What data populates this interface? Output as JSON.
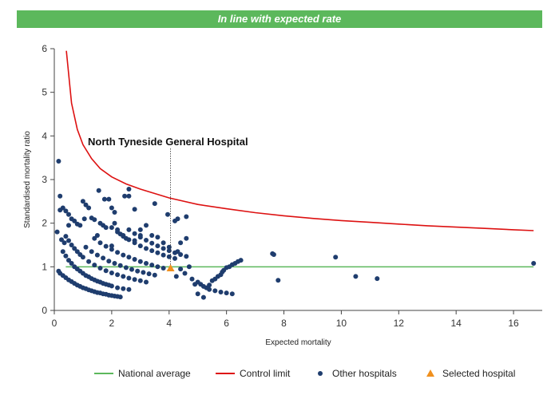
{
  "banner": {
    "text": "In line with expected rate"
  },
  "chart_data": {
    "type": "scatter",
    "xlabel": "Expected mortality",
    "ylabel": "Standardised mortality ratio",
    "xlim": [
      0,
      17
    ],
    "ylim": [
      0,
      6
    ],
    "xticks": [
      0,
      2,
      4,
      6,
      8,
      10,
      12,
      14,
      16
    ],
    "yticks": [
      0,
      1,
      2,
      3,
      4,
      5,
      6
    ],
    "annotation": {
      "text": "North Tyneside General Hospital",
      "x": 4.05
    },
    "legend": {
      "position": "bottom",
      "entries": [
        {
          "label": "National average",
          "kind": "line",
          "color": "#5cb85c"
        },
        {
          "label": "Control limit",
          "kind": "line",
          "color": "#dd1111"
        },
        {
          "label": "Other hospitals",
          "kind": "circle",
          "color": "#1f3d6e"
        },
        {
          "label": "Selected hospital",
          "kind": "triangle",
          "color": "#f0901e"
        }
      ]
    },
    "series": [
      {
        "name": "National average",
        "type": "line",
        "color": "#5cb85c",
        "x": [
          0.4,
          16.7
        ],
        "y": [
          1,
          1
        ]
      },
      {
        "name": "Control limit",
        "type": "line",
        "color": "#dd1111",
        "x": [
          0.42,
          0.6,
          0.8,
          1,
          1.3,
          1.6,
          2,
          2.5,
          3,
          3.5,
          4,
          5,
          6,
          7,
          8,
          9,
          10,
          11,
          12,
          13,
          14,
          15,
          16,
          16.7
        ],
        "y": [
          5.95,
          4.75,
          4.15,
          3.8,
          3.48,
          3.25,
          3.06,
          2.9,
          2.78,
          2.68,
          2.58,
          2.43,
          2.33,
          2.24,
          2.17,
          2.11,
          2.06,
          2.02,
          1.98,
          1.94,
          1.91,
          1.88,
          1.85,
          1.83
        ]
      },
      {
        "name": "Selected hospital",
        "type": "scatter",
        "color": "#f0901e",
        "x": [
          4.05
        ],
        "y": [
          0.97
        ]
      },
      {
        "name": "Other hospitals",
        "type": "scatter",
        "color": "#1f3d6e",
        "x": [
          0.15,
          0.2,
          0.3,
          0.4,
          0.5,
          0.6,
          0.7,
          0.8,
          0.9,
          1.0,
          1.1,
          1.2,
          1.3,
          1.4,
          1.5,
          1.6,
          1.7,
          1.8,
          1.9,
          2.0,
          2.1,
          2.2,
          2.3,
          0.3,
          0.4,
          0.5,
          0.6,
          0.7,
          0.8,
          0.9,
          1.0,
          1.1,
          1.2,
          1.3,
          1.4,
          1.5,
          1.6,
          1.7,
          1.8,
          1.9,
          2.0,
          2.2,
          2.4,
          2.6,
          0.4,
          0.5,
          0.6,
          0.7,
          0.8,
          0.9,
          1.0,
          1.2,
          1.4,
          1.6,
          1.8,
          2.0,
          2.2,
          2.4,
          2.6,
          2.8,
          3.0,
          3.2,
          1.1,
          1.3,
          1.5,
          1.7,
          1.9,
          2.1,
          2.3,
          2.5,
          2.7,
          2.9,
          3.1,
          3.3,
          3.5,
          1.4,
          1.6,
          1.8,
          2.0,
          2.2,
          2.4,
          2.6,
          2.8,
          3.0,
          3.2,
          3.4,
          3.6,
          3.8,
          2.0,
          2.2,
          2.4,
          2.6,
          2.8,
          3.0,
          3.2,
          3.4,
          3.6,
          3.8,
          4.0,
          4.2,
          2.6,
          2.8,
          3.0,
          3.2,
          3.4,
          3.6,
          3.8,
          4.0,
          4.2,
          4.4,
          4.6,
          0.1,
          0.15,
          0.2,
          0.25,
          0.3,
          0.35,
          0.4,
          0.5,
          0.6,
          0.7,
          0.8,
          0.9,
          1.0,
          1.05,
          1.1,
          1.2,
          1.3,
          1.4,
          1.5,
          1.6,
          1.7,
          1.8,
          1.9,
          2.0,
          2.1,
          2.2,
          2.3,
          2.4,
          2.5,
          2.6,
          2.8,
          3.0,
          3.2,
          3.4,
          3.6,
          3.8,
          4.0,
          4.2,
          4.4,
          4.6,
          0.2,
          0.5,
          1.55,
          1.75,
          2.0,
          2.1,
          2.45,
          2.6,
          2.8,
          3.0,
          3.5,
          3.95,
          4.3,
          4.6,
          4.3,
          5.0,
          5.2,
          5.3,
          5.4,
          5.5,
          5.6,
          5.7,
          5.8,
          5.85,
          5.9,
          6.0,
          6.1,
          6.2,
          6.3,
          6.4,
          6.5,
          4.8,
          5.0,
          5.1,
          5.2,
          5.4,
          5.6,
          5.8,
          6.0,
          6.2,
          4.25,
          4.4,
          4.55,
          4.7,
          4.9,
          7.6,
          7.65,
          7.8,
          9.8,
          10.5,
          11.25,
          16.7
        ],
        "y": [
          0.9,
          0.85,
          0.8,
          0.75,
          0.7,
          0.66,
          0.62,
          0.58,
          0.55,
          0.52,
          0.5,
          0.47,
          0.45,
          0.43,
          0.41,
          0.4,
          0.38,
          0.37,
          0.35,
          0.34,
          0.33,
          0.32,
          0.31,
          1.35,
          1.25,
          1.15,
          1.08,
          1.0,
          0.95,
          0.9,
          0.85,
          0.8,
          0.77,
          0.73,
          0.7,
          0.67,
          0.65,
          0.62,
          0.6,
          0.58,
          0.56,
          0.52,
          0.5,
          0.48,
          1.7,
          1.6,
          1.5,
          1.42,
          1.35,
          1.28,
          1.22,
          1.12,
          1.04,
          0.97,
          0.91,
          0.86,
          0.82,
          0.78,
          0.74,
          0.71,
          0.68,
          0.65,
          1.45,
          1.35,
          1.27,
          1.2,
          1.13,
          1.08,
          1.03,
          0.98,
          0.94,
          0.9,
          0.87,
          0.84,
          0.81,
          1.65,
          1.55,
          1.47,
          1.4,
          1.33,
          1.27,
          1.22,
          1.17,
          1.12,
          1.08,
          1.04,
          1.0,
          0.97,
          1.9,
          1.8,
          1.7,
          1.62,
          1.55,
          1.48,
          1.42,
          1.37,
          1.32,
          1.27,
          1.23,
          1.19,
          1.85,
          1.76,
          1.68,
          1.61,
          1.54,
          1.48,
          1.42,
          1.37,
          1.32,
          1.28,
          1.24,
          1.8,
          3.42,
          2.62,
          1.62,
          2.35,
          1.55,
          2.28,
          2.2,
          2.1,
          2.05,
          1.98,
          1.95,
          2.5,
          2.1,
          2.42,
          2.35,
          2.12,
          2.08,
          1.72,
          2.0,
          1.95,
          1.9,
          2.55,
          2.35,
          2.25,
          1.85,
          1.75,
          1.72,
          1.65,
          2.62,
          2.32,
          1.85,
          1.95,
          1.72,
          1.68,
          1.55,
          1.45,
          2.05,
          1.55,
          1.65,
          2.3,
          1.95,
          2.75,
          2.55,
          1.48,
          2.0,
          2.62,
          2.78,
          1.6,
          1.72,
          2.45,
          2.2,
          2.1,
          2.15,
          1.35,
          0.38,
          0.3,
          0.52,
          0.58,
          0.68,
          0.72,
          0.78,
          0.82,
          0.88,
          0.92,
          0.98,
          1.0,
          1.05,
          1.08,
          1.12,
          1.15,
          0.72,
          0.65,
          0.6,
          0.55,
          0.48,
          0.45,
          0.42,
          0.4,
          0.38,
          0.78,
          0.95,
          0.85,
          1.0,
          0.6,
          1.3,
          1.28,
          0.69,
          1.22,
          0.78,
          0.73,
          1.08
        ]
      }
    ]
  }
}
